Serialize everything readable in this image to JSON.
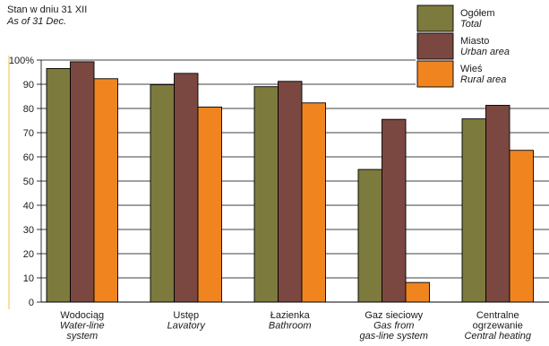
{
  "header": {
    "title_pl": "Stan w dniu 31 XII",
    "title_en": "As of 31 Dec."
  },
  "colors": {
    "total": "#7d7a3d",
    "urban": "#7a4840",
    "rural": "#f08520",
    "axis_line": "#f4d27a",
    "grid": "#000000"
  },
  "chart_data": {
    "type": "bar",
    "ylim": [
      0,
      100
    ],
    "y_ticks": [
      "0",
      "10",
      "20",
      "30",
      "40",
      "50",
      "60",
      "70",
      "80",
      "90",
      "100%"
    ],
    "grid": true,
    "legend_position": "top-right",
    "categories": [
      {
        "pl": "Wodociąg",
        "en": [
          "Water-line",
          "system"
        ]
      },
      {
        "pl": "Ustęp",
        "en": [
          "Lavatory"
        ]
      },
      {
        "pl": "Łazienka",
        "en": [
          "Bathroom"
        ]
      },
      {
        "pl": "Gaz sieciowy",
        "en": [
          "Gas from",
          "gas-line system"
        ]
      },
      {
        "pl": "Centralne",
        "pl2": "ogrzewanie",
        "en": [
          "Central heating"
        ]
      }
    ],
    "series": [
      {
        "name": "Ogółem",
        "name_en": "Total",
        "color": "#7d7a3d",
        "values": [
          96.5,
          89.8,
          89.0,
          54.8,
          75.7
        ]
      },
      {
        "name": "Miasto",
        "name_en": "Urban area",
        "color": "#7a4840",
        "values": [
          99.3,
          94.5,
          91.2,
          75.5,
          81.3
        ]
      },
      {
        "name": "Wieś",
        "name_en": "Rural area",
        "color": "#f08520",
        "values": [
          92.3,
          80.6,
          82.3,
          8.1,
          62.7
        ]
      }
    ]
  }
}
